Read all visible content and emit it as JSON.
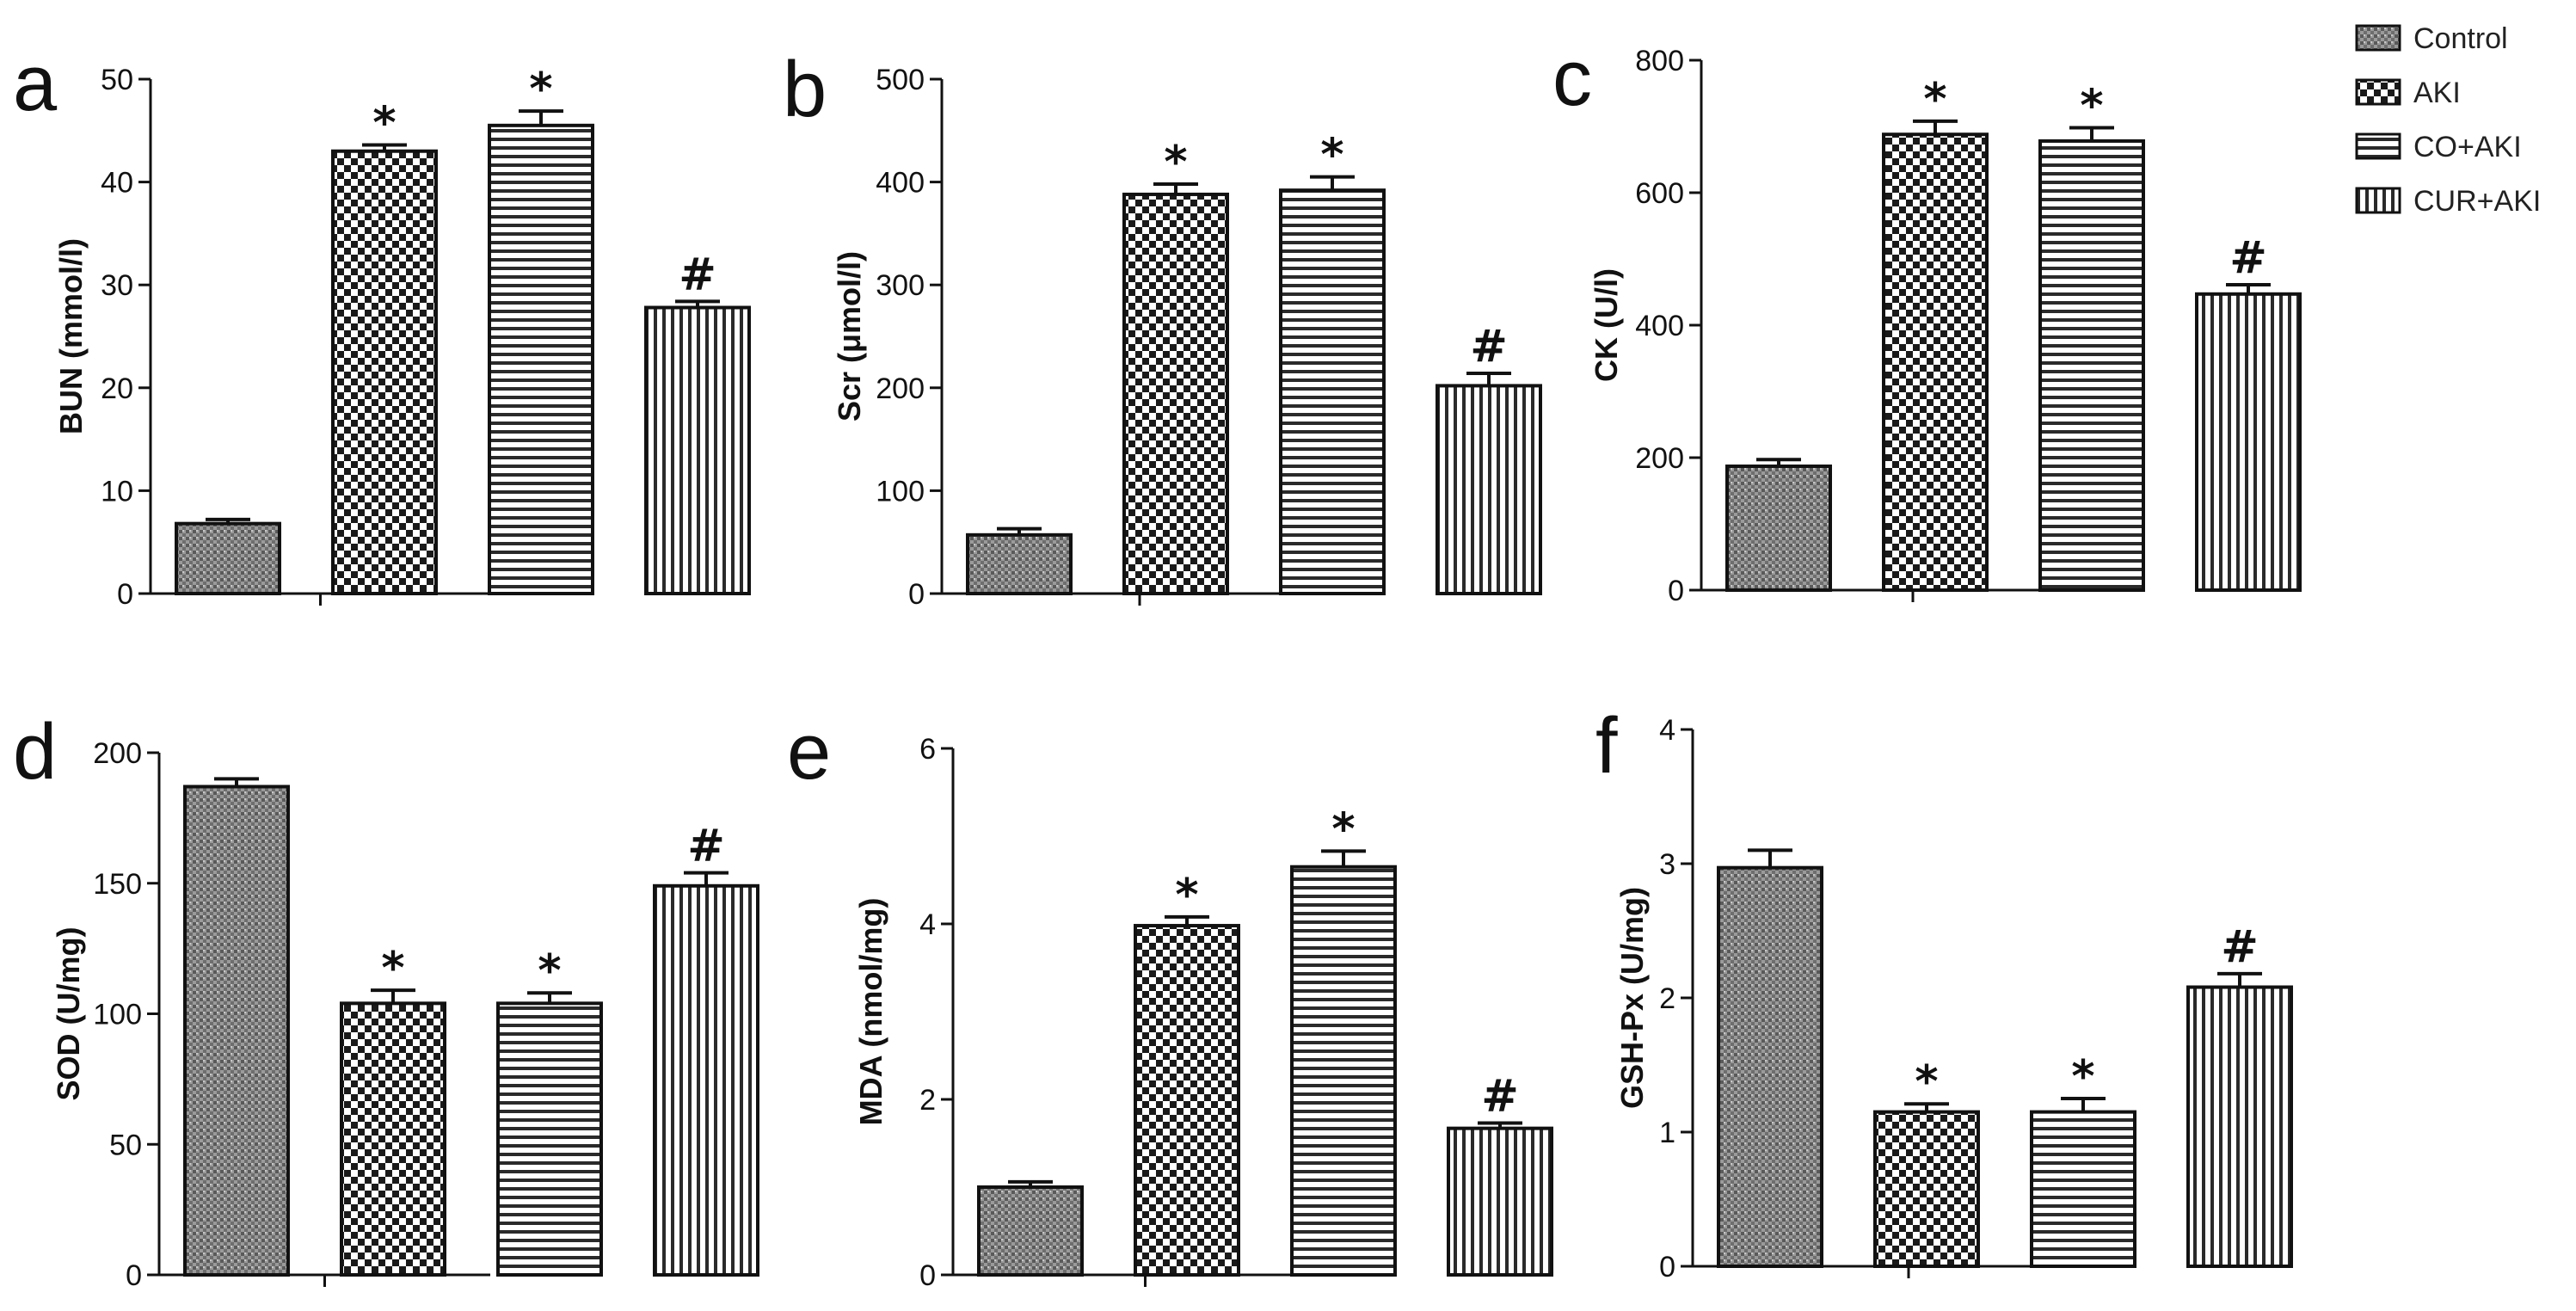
{
  "legend": [
    {
      "name": "Control",
      "pattern": "grain"
    },
    {
      "name": "AKI",
      "pattern": "check"
    },
    {
      "name": "CO+AKI",
      "pattern": "hstripe"
    },
    {
      "name": "CUR+AKI",
      "pattern": "vstripe"
    }
  ],
  "chart_data": [
    {
      "type": "bar",
      "letter": "a",
      "ylabel": "BUN (mmol/l)",
      "ylim": [
        0,
        50
      ],
      "yticks": [
        "0",
        "10",
        "20",
        "30",
        "40",
        "50"
      ],
      "categories": [
        "Control",
        "AKI",
        "CO+AKI",
        "CUR+AKI"
      ],
      "values": [
        6.8,
        43,
        45.5,
        27.8
      ],
      "errors": [
        0.4,
        0.6,
        1.4,
        0.6
      ],
      "marks": [
        "",
        "*",
        "*",
        "#"
      ]
    },
    {
      "type": "bar",
      "letter": "b",
      "ylabel": "Scr (μmol/l)",
      "ylim": [
        0,
        500
      ],
      "yticks": [
        "0",
        "100",
        "200",
        "300",
        "400",
        "500"
      ],
      "categories": [
        "Control",
        "AKI",
        "CO+AKI",
        "CUR+AKI"
      ],
      "values": [
        57,
        388,
        392,
        202
      ],
      "errors": [
        6,
        10,
        13,
        12
      ],
      "marks": [
        "",
        "*",
        "*",
        "#"
      ]
    },
    {
      "type": "bar",
      "letter": "c",
      "ylabel": "CK (U/l)",
      "ylim": [
        0,
        800
      ],
      "yticks": [
        "0",
        "200",
        "400",
        "600",
        "800"
      ],
      "categories": [
        "Control",
        "AKI",
        "CO+AKI",
        "CUR+AKI"
      ],
      "values": [
        187,
        688,
        678,
        447
      ],
      "errors": [
        10,
        20,
        20,
        14
      ],
      "marks": [
        "",
        "*",
        "*",
        "#"
      ]
    },
    {
      "type": "bar",
      "letter": "d",
      "ylabel": "SOD (U/mg)",
      "ylim": [
        0,
        200
      ],
      "yticks": [
        "0",
        "50",
        "100",
        "150",
        "200"
      ],
      "categories": [
        "Control",
        "AKI",
        "CO+AKI",
        "CUR+AKI"
      ],
      "values": [
        187,
        104,
        104,
        149
      ],
      "errors": [
        3,
        5,
        4,
        5
      ],
      "marks": [
        "",
        "*",
        "*",
        "#"
      ]
    },
    {
      "type": "bar",
      "letter": "e",
      "ylabel": "MDA (nmol/mg)",
      "ylim": [
        0,
        6
      ],
      "yticks": [
        "0",
        "2",
        "4",
        "6"
      ],
      "categories": [
        "Control",
        "AKI",
        "CO+AKI",
        "CUR+AKI"
      ],
      "values": [
        1.0,
        3.98,
        4.65,
        1.67
      ],
      "errors": [
        0.06,
        0.1,
        0.18,
        0.06
      ],
      "marks": [
        "",
        "*",
        "*",
        "#"
      ]
    },
    {
      "type": "bar",
      "letter": "f",
      "ylabel": "GSH-Px (U/mg)",
      "ylim": [
        0,
        4
      ],
      "yticks": [
        "0",
        "1",
        "2",
        "3",
        "4"
      ],
      "categories": [
        "Control",
        "AKI",
        "CO+AKI",
        "CUR+AKI"
      ],
      "values": [
        2.97,
        1.15,
        1.15,
        2.08
      ],
      "errors": [
        0.13,
        0.06,
        0.1,
        0.1
      ],
      "marks": [
        "",
        "*",
        "*",
        "#"
      ]
    }
  ]
}
